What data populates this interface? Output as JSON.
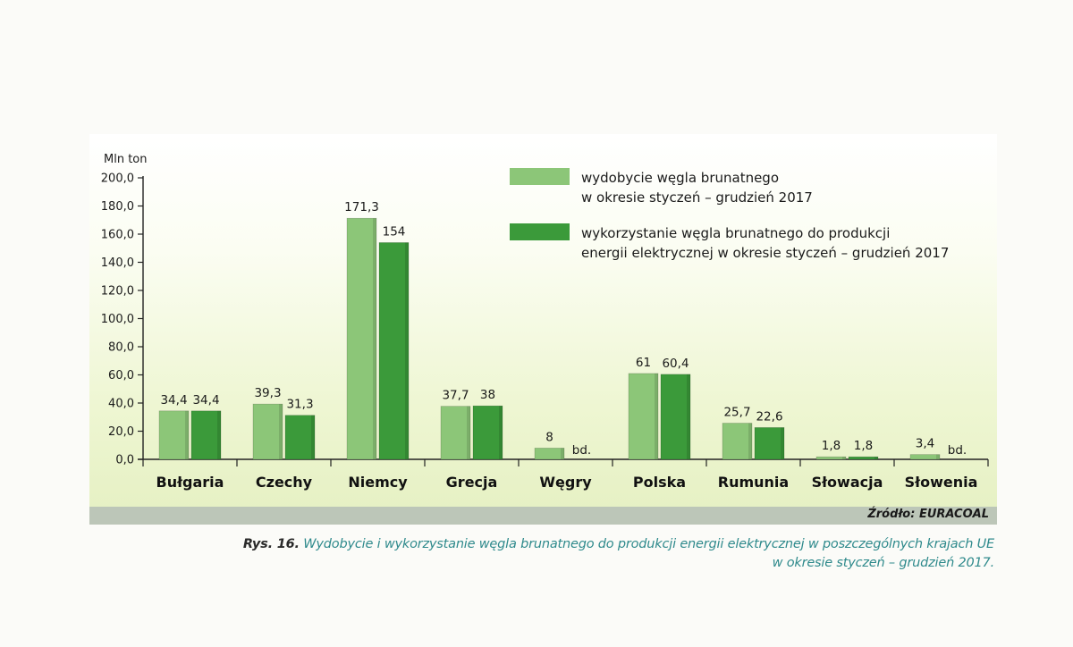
{
  "chart_data": {
    "type": "bar",
    "ylabel": "Mln ton",
    "ylim": [
      0,
      200
    ],
    "yticks": [
      "0,0",
      "20,0",
      "40,0",
      "60,0",
      "80,0",
      "100,0",
      "120,0",
      "140,0",
      "160,0",
      "180,0",
      "200,0"
    ],
    "categories": [
      "Bułgaria",
      "Czechy",
      "Niemcy",
      "Grecja",
      "Węgry",
      "Polska",
      "Rumunia",
      "Słowacja",
      "Słowenia"
    ],
    "series": [
      {
        "name": "wydobycie węgla brunatnego w okresie styczeń – grudzień 2017",
        "legend_lines": [
          "wydobycie węgla brunatnego",
          "w okresie styczeń – grudzień 2017"
        ],
        "color": "#8cc678",
        "values": [
          34.4,
          39.3,
          171.3,
          37.7,
          8,
          61,
          25.7,
          1.8,
          3.4
        ],
        "labels": [
          "34,4",
          "39,3",
          "171,3",
          "37,7",
          "8",
          "61",
          "25,7",
          "1,8",
          "3,4"
        ]
      },
      {
        "name": "wykorzystanie węgla brunatnego do produkcji energii elektrycznej w okresie styczeń – grudzień 2017",
        "legend_lines": [
          "wykorzystanie węgla brunatnego do produkcji",
          "energii elektrycznej w okresie styczeń – grudzień 2017"
        ],
        "color": "#3b9a3a",
        "values": [
          34.4,
          31.3,
          154,
          38,
          null,
          60.4,
          22.6,
          1.8,
          null
        ],
        "labels": [
          "34,4",
          "31,3",
          "154",
          "38",
          "bd.",
          "60,4",
          "22,6",
          "1,8",
          "bd."
        ]
      }
    ],
    "legend_position": "top-right",
    "grid": false
  },
  "source": "Źródło: EURACOAL",
  "caption": {
    "label": "Rys. 16.",
    "line1": "Wydobycie i wykorzystanie węgla brunatnego do produkcji energii elektrycznej w poszczególnych krajach UE",
    "line2": "w okresie styczeń – grudzień 2017."
  }
}
